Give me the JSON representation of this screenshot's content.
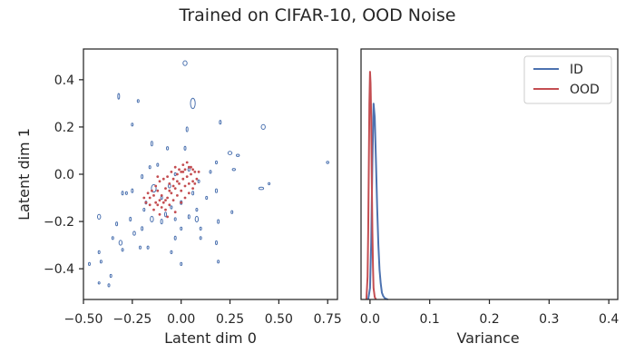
{
  "title": "Trained on CIFAR-10, OOD Noise",
  "colors": {
    "id": "#4c72b0",
    "ood": "#c44e52",
    "axis": "#262626"
  },
  "chart_data": [
    {
      "type": "scatter",
      "xlabel": "Latent dim 0",
      "ylabel": "Latent dim 1",
      "xlim": [
        -0.5,
        0.8
      ],
      "ylim": [
        -0.53,
        0.53
      ],
      "xticks": [
        -0.5,
        -0.25,
        0.0,
        0.25,
        0.5,
        0.75
      ],
      "xtick_labels": [
        "−0.50",
        "−0.25",
        "0.00",
        "0.25",
        "0.50",
        "0.75"
      ],
      "yticks": [
        -0.4,
        -0.2,
        0.0,
        0.2,
        0.4
      ],
      "ytick_labels": [
        "−0.4",
        "−0.2",
        "0.0",
        "0.2",
        "0.4"
      ],
      "grid": false,
      "series": [
        {
          "name": "ID",
          "marker": "ellipse-outline",
          "points": [
            [
              0.02,
              0.47,
              0.01,
              0.01
            ],
            [
              0.06,
              0.3,
              0.012,
              0.022
            ],
            [
              -0.32,
              0.33,
              0.004,
              0.012
            ],
            [
              -0.22,
              0.31,
              0.003,
              0.006
            ],
            [
              0.03,
              0.19,
              0.004,
              0.01
            ],
            [
              0.42,
              0.2,
              0.01,
              0.01
            ],
            [
              0.2,
              0.22,
              0.004,
              0.008
            ],
            [
              -0.25,
              0.21,
              0.003,
              0.006
            ],
            [
              -0.15,
              0.13,
              0.004,
              0.01
            ],
            [
              0.02,
              0.11,
              0.004,
              0.008
            ],
            [
              0.25,
              0.09,
              0.01,
              0.007
            ],
            [
              0.29,
              0.08,
              0.008,
              0.004
            ],
            [
              -0.07,
              0.11,
              0.005,
              0.007
            ],
            [
              0.75,
              0.05,
              0.006,
              0.004
            ],
            [
              0.18,
              0.05,
              0.004,
              0.006
            ],
            [
              -0.16,
              0.03,
              0.004,
              0.006
            ],
            [
              0.27,
              0.02,
              0.008,
              0.004
            ],
            [
              0.04,
              0.02,
              0.005,
              0.007
            ],
            [
              -0.03,
              0.0,
              0.004,
              0.006
            ],
            [
              -0.2,
              -0.01,
              0.004,
              0.008
            ],
            [
              0.45,
              -0.04,
              0.004,
              0.004
            ],
            [
              -0.06,
              -0.05,
              0.006,
              0.008
            ],
            [
              -0.14,
              -0.06,
              0.012,
              0.016
            ],
            [
              0.41,
              -0.06,
              0.012,
              0.005
            ],
            [
              -0.25,
              -0.07,
              0.004,
              0.008
            ],
            [
              0.18,
              -0.07,
              0.005,
              0.008
            ],
            [
              -0.3,
              -0.08,
              0.004,
              0.008
            ],
            [
              0.06,
              -0.08,
              0.004,
              0.008
            ],
            [
              -0.1,
              -0.1,
              0.004,
              0.006
            ],
            [
              0.13,
              -0.1,
              0.004,
              0.006
            ],
            [
              -0.18,
              -0.12,
              0.004,
              0.006
            ],
            [
              0.0,
              -0.12,
              0.005,
              0.008
            ],
            [
              -0.05,
              -0.14,
              0.004,
              0.006
            ],
            [
              0.08,
              -0.15,
              0.004,
              0.006
            ],
            [
              0.26,
              -0.16,
              0.004,
              0.006
            ],
            [
              -0.08,
              -0.17,
              0.004,
              0.01
            ],
            [
              -0.42,
              -0.18,
              0.008,
              0.01
            ],
            [
              0.04,
              -0.18,
              0.004,
              0.008
            ],
            [
              -0.26,
              -0.19,
              0.004,
              0.008
            ],
            [
              -0.15,
              -0.19,
              0.008,
              0.012
            ],
            [
              -0.03,
              -0.19,
              0.004,
              0.006
            ],
            [
              0.08,
              -0.19,
              0.008,
              0.012
            ],
            [
              -0.2,
              -0.23,
              0.004,
              0.008
            ],
            [
              -0.1,
              -0.2,
              0.005,
              0.01
            ],
            [
              0.19,
              -0.2,
              0.004,
              0.008
            ],
            [
              -0.33,
              -0.21,
              0.004,
              0.008
            ],
            [
              0.0,
              -0.23,
              0.004,
              0.006
            ],
            [
              -0.24,
              -0.25,
              0.006,
              0.008
            ],
            [
              -0.35,
              -0.27,
              0.004,
              0.006
            ],
            [
              -0.03,
              -0.27,
              0.004,
              0.008
            ],
            [
              0.1,
              -0.27,
              0.004,
              0.006
            ],
            [
              -0.31,
              -0.29,
              0.008,
              0.01
            ],
            [
              -0.17,
              -0.31,
              0.004,
              0.006
            ],
            [
              0.18,
              -0.29,
              0.004,
              0.008
            ],
            [
              -0.42,
              -0.33,
              0.004,
              0.006
            ],
            [
              -0.3,
              -0.32,
              0.004,
              0.006
            ],
            [
              -0.21,
              -0.31,
              0.004,
              0.006
            ],
            [
              -0.05,
              -0.33,
              0.004,
              0.006
            ],
            [
              0.19,
              -0.37,
              0.004,
              0.006
            ],
            [
              -0.47,
              -0.38,
              0.004,
              0.006
            ],
            [
              -0.41,
              -0.37,
              0.004,
              0.006
            ],
            [
              0.0,
              -0.38,
              0.004,
              0.006
            ],
            [
              -0.36,
              -0.43,
              0.004,
              0.006
            ],
            [
              -0.37,
              -0.47,
              0.004,
              0.006
            ],
            [
              -0.42,
              -0.46,
              0.004,
              0.004
            ],
            [
              -0.28,
              -0.08,
              0.004,
              0.006
            ],
            [
              0.09,
              -0.03,
              0.004,
              0.006
            ],
            [
              -0.19,
              -0.15,
              0.004,
              0.006
            ],
            [
              0.15,
              0.01,
              0.004,
              0.006
            ],
            [
              0.1,
              -0.23,
              0.004,
              0.006
            ],
            [
              -0.12,
              0.04,
              0.004,
              0.006
            ]
          ]
        },
        {
          "name": "OOD",
          "marker": "dot",
          "points": [
            [
              -0.12,
              -0.07
            ],
            [
              -0.1,
              -0.09
            ],
            [
              -0.08,
              -0.06
            ],
            [
              -0.06,
              -0.04
            ],
            [
              -0.04,
              -0.02
            ],
            [
              -0.02,
              0.0
            ],
            [
              0.0,
              0.01
            ],
            [
              0.02,
              0.02
            ],
            [
              0.04,
              0.03
            ],
            [
              0.06,
              0.02
            ],
            [
              -0.11,
              -0.11
            ],
            [
              -0.09,
              -0.12
            ],
            [
              -0.07,
              -0.1
            ],
            [
              -0.05,
              -0.08
            ],
            [
              -0.03,
              -0.06
            ],
            [
              -0.01,
              -0.04
            ],
            [
              0.01,
              -0.02
            ],
            [
              0.03,
              -0.01
            ],
            [
              0.05,
              0.0
            ],
            [
              0.07,
              0.01
            ],
            [
              -0.13,
              -0.05
            ],
            [
              -0.14,
              -0.09
            ],
            [
              -0.15,
              -0.07
            ],
            [
              -0.16,
              -0.1
            ],
            [
              -0.12,
              -0.13
            ],
            [
              -0.1,
              -0.14
            ],
            [
              -0.08,
              -0.15
            ],
            [
              -0.06,
              -0.13
            ],
            [
              -0.04,
              -0.11
            ],
            [
              -0.02,
              -0.09
            ],
            [
              0.0,
              -0.07
            ],
            [
              0.02,
              -0.05
            ],
            [
              0.04,
              -0.04
            ],
            [
              0.06,
              -0.03
            ],
            [
              0.08,
              -0.02
            ],
            [
              -0.05,
              0.01
            ],
            [
              -0.03,
              0.03
            ],
            [
              -0.01,
              0.02
            ],
            [
              0.01,
              0.04
            ],
            [
              0.03,
              0.05
            ],
            [
              -0.09,
              -0.02
            ],
            [
              -0.07,
              -0.01
            ],
            [
              -0.11,
              -0.03
            ],
            [
              -0.13,
              -0.12
            ],
            [
              -0.17,
              -0.08
            ],
            [
              -0.18,
              -0.12
            ],
            [
              -0.14,
              -0.15
            ],
            [
              -0.11,
              -0.17
            ],
            [
              -0.07,
              -0.18
            ],
            [
              -0.03,
              -0.16
            ],
            [
              0.0,
              -0.12
            ],
            [
              0.02,
              -0.1
            ],
            [
              0.04,
              -0.08
            ],
            [
              0.06,
              -0.06
            ],
            [
              0.07,
              -0.04
            ],
            [
              0.09,
              0.01
            ],
            [
              0.05,
              0.03
            ],
            [
              -0.02,
              -0.03
            ],
            [
              -0.06,
              -0.07
            ],
            [
              -0.08,
              -0.11
            ],
            [
              -0.16,
              -0.13
            ],
            [
              -0.19,
              -0.1
            ],
            [
              -0.12,
              -0.01
            ],
            [
              0.01,
              0.01
            ],
            [
              -0.04,
              -0.05
            ]
          ]
        }
      ]
    },
    {
      "type": "line",
      "xlabel": "Variance",
      "ylabel": "",
      "xlim": [
        -0.015,
        0.415
      ],
      "xticks": [
        0.0,
        0.1,
        0.2,
        0.3,
        0.4
      ],
      "xtick_labels": [
        "0.0",
        "0.1",
        "0.2",
        "0.3",
        "0.4"
      ],
      "yticks": [],
      "ylim": [
        0,
        1.1
      ],
      "legend": "top-right",
      "grid": false,
      "series": [
        {
          "name": "ID",
          "x": [
            -0.003,
            0.0,
            0.002,
            0.004,
            0.006,
            0.008,
            0.01,
            0.012,
            0.014,
            0.016,
            0.018,
            0.02,
            0.022,
            0.025,
            0.03
          ],
          "y": [
            0.0,
            0.05,
            0.25,
            0.6,
            0.86,
            0.8,
            0.6,
            0.4,
            0.24,
            0.13,
            0.07,
            0.03,
            0.015,
            0.005,
            0.0
          ]
        },
        {
          "name": "OOD",
          "x": [
            -0.006,
            -0.004,
            -0.003,
            -0.002,
            -0.001,
            0.0,
            0.001,
            0.002,
            0.003,
            0.004,
            0.005,
            0.006,
            0.008,
            0.01
          ],
          "y": [
            0.0,
            0.1,
            0.3,
            0.6,
            0.86,
            1.0,
            0.95,
            0.8,
            0.55,
            0.3,
            0.14,
            0.05,
            0.01,
            0.0
          ]
        }
      ]
    }
  ]
}
